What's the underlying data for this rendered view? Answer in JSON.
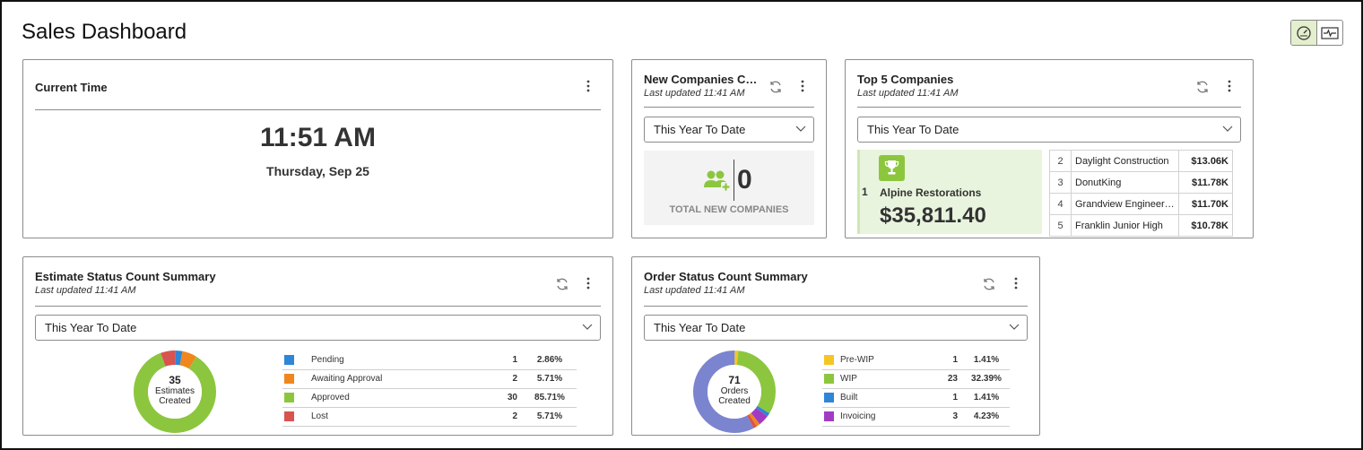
{
  "page": {
    "title": "Sales Dashboard"
  },
  "colors": {
    "accent_green": "#8cc63f",
    "light_green": "#e9f4de",
    "toggle_active": "#e4efcd"
  },
  "current_time": {
    "title": "Current Time",
    "time": "11:51 AM",
    "date": "Thursday, Sep 25"
  },
  "new_companies": {
    "title": "New Companies Cre...",
    "updated": "Last updated 11:41 AM",
    "range": "This Year To Date",
    "count": "0",
    "label": "TOTAL NEW COMPANIES"
  },
  "top5": {
    "title": "Top 5 Companies",
    "updated": "Last updated 11:41 AM",
    "range": "This Year To Date",
    "first": {
      "rank": "1",
      "name": "Alpine Restorations",
      "amount": "$35,811.40"
    },
    "rows": [
      {
        "rank": "2",
        "name": "Daylight Construction",
        "amount": "$13.06K"
      },
      {
        "rank": "3",
        "name": "DonutKing",
        "amount": "$11.78K"
      },
      {
        "rank": "4",
        "name": "Grandview Engineeri...",
        "amount": "$11.70K"
      },
      {
        "rank": "5",
        "name": "Franklin Junior High",
        "amount": "$10.78K"
      }
    ]
  },
  "estimate": {
    "title": "Estimate Status Count Summary",
    "updated": "Last updated 11:41 AM",
    "range": "This Year To Date",
    "total": "35",
    "total_label_1": "Estimates",
    "total_label_2": "Created",
    "legend": [
      {
        "label": "Pending",
        "count": "1",
        "pct": "2.86%",
        "color": "#2e86d6",
        "value": 1
      },
      {
        "label": "Awaiting Approval",
        "count": "2",
        "pct": "5.71%",
        "color": "#f0861e",
        "value": 2
      },
      {
        "label": "Approved",
        "count": "30",
        "pct": "85.71%",
        "color": "#8cc63f",
        "value": 30
      },
      {
        "label": "Lost",
        "count": "2",
        "pct": "5.71%",
        "color": "#d9534f",
        "value": 2
      }
    ]
  },
  "order": {
    "title": "Order Status Count Summary",
    "updated": "Last updated 11:41 AM",
    "range": "This Year To Date",
    "total": "71",
    "total_label_1": "Orders",
    "total_label_2": "Created",
    "legend": [
      {
        "label": "Pre-WIP",
        "count": "1",
        "pct": "1.41%",
        "color": "#f5c623",
        "value": 1
      },
      {
        "label": "WIP",
        "count": "23",
        "pct": "32.39%",
        "color": "#8cc63f",
        "value": 23
      },
      {
        "label": "Built",
        "count": "1",
        "pct": "1.41%",
        "color": "#2e86d6",
        "value": 1
      },
      {
        "label": "Invoicing",
        "count": "3",
        "pct": "4.23%",
        "color": "#a23bc4",
        "value": 3
      }
    ],
    "hidden_segments": [
      {
        "color": "#f0861e",
        "value": 1
      },
      {
        "color": "#d9534f",
        "value": 1
      },
      {
        "color": "#7b84cf",
        "value": 41
      }
    ]
  }
}
